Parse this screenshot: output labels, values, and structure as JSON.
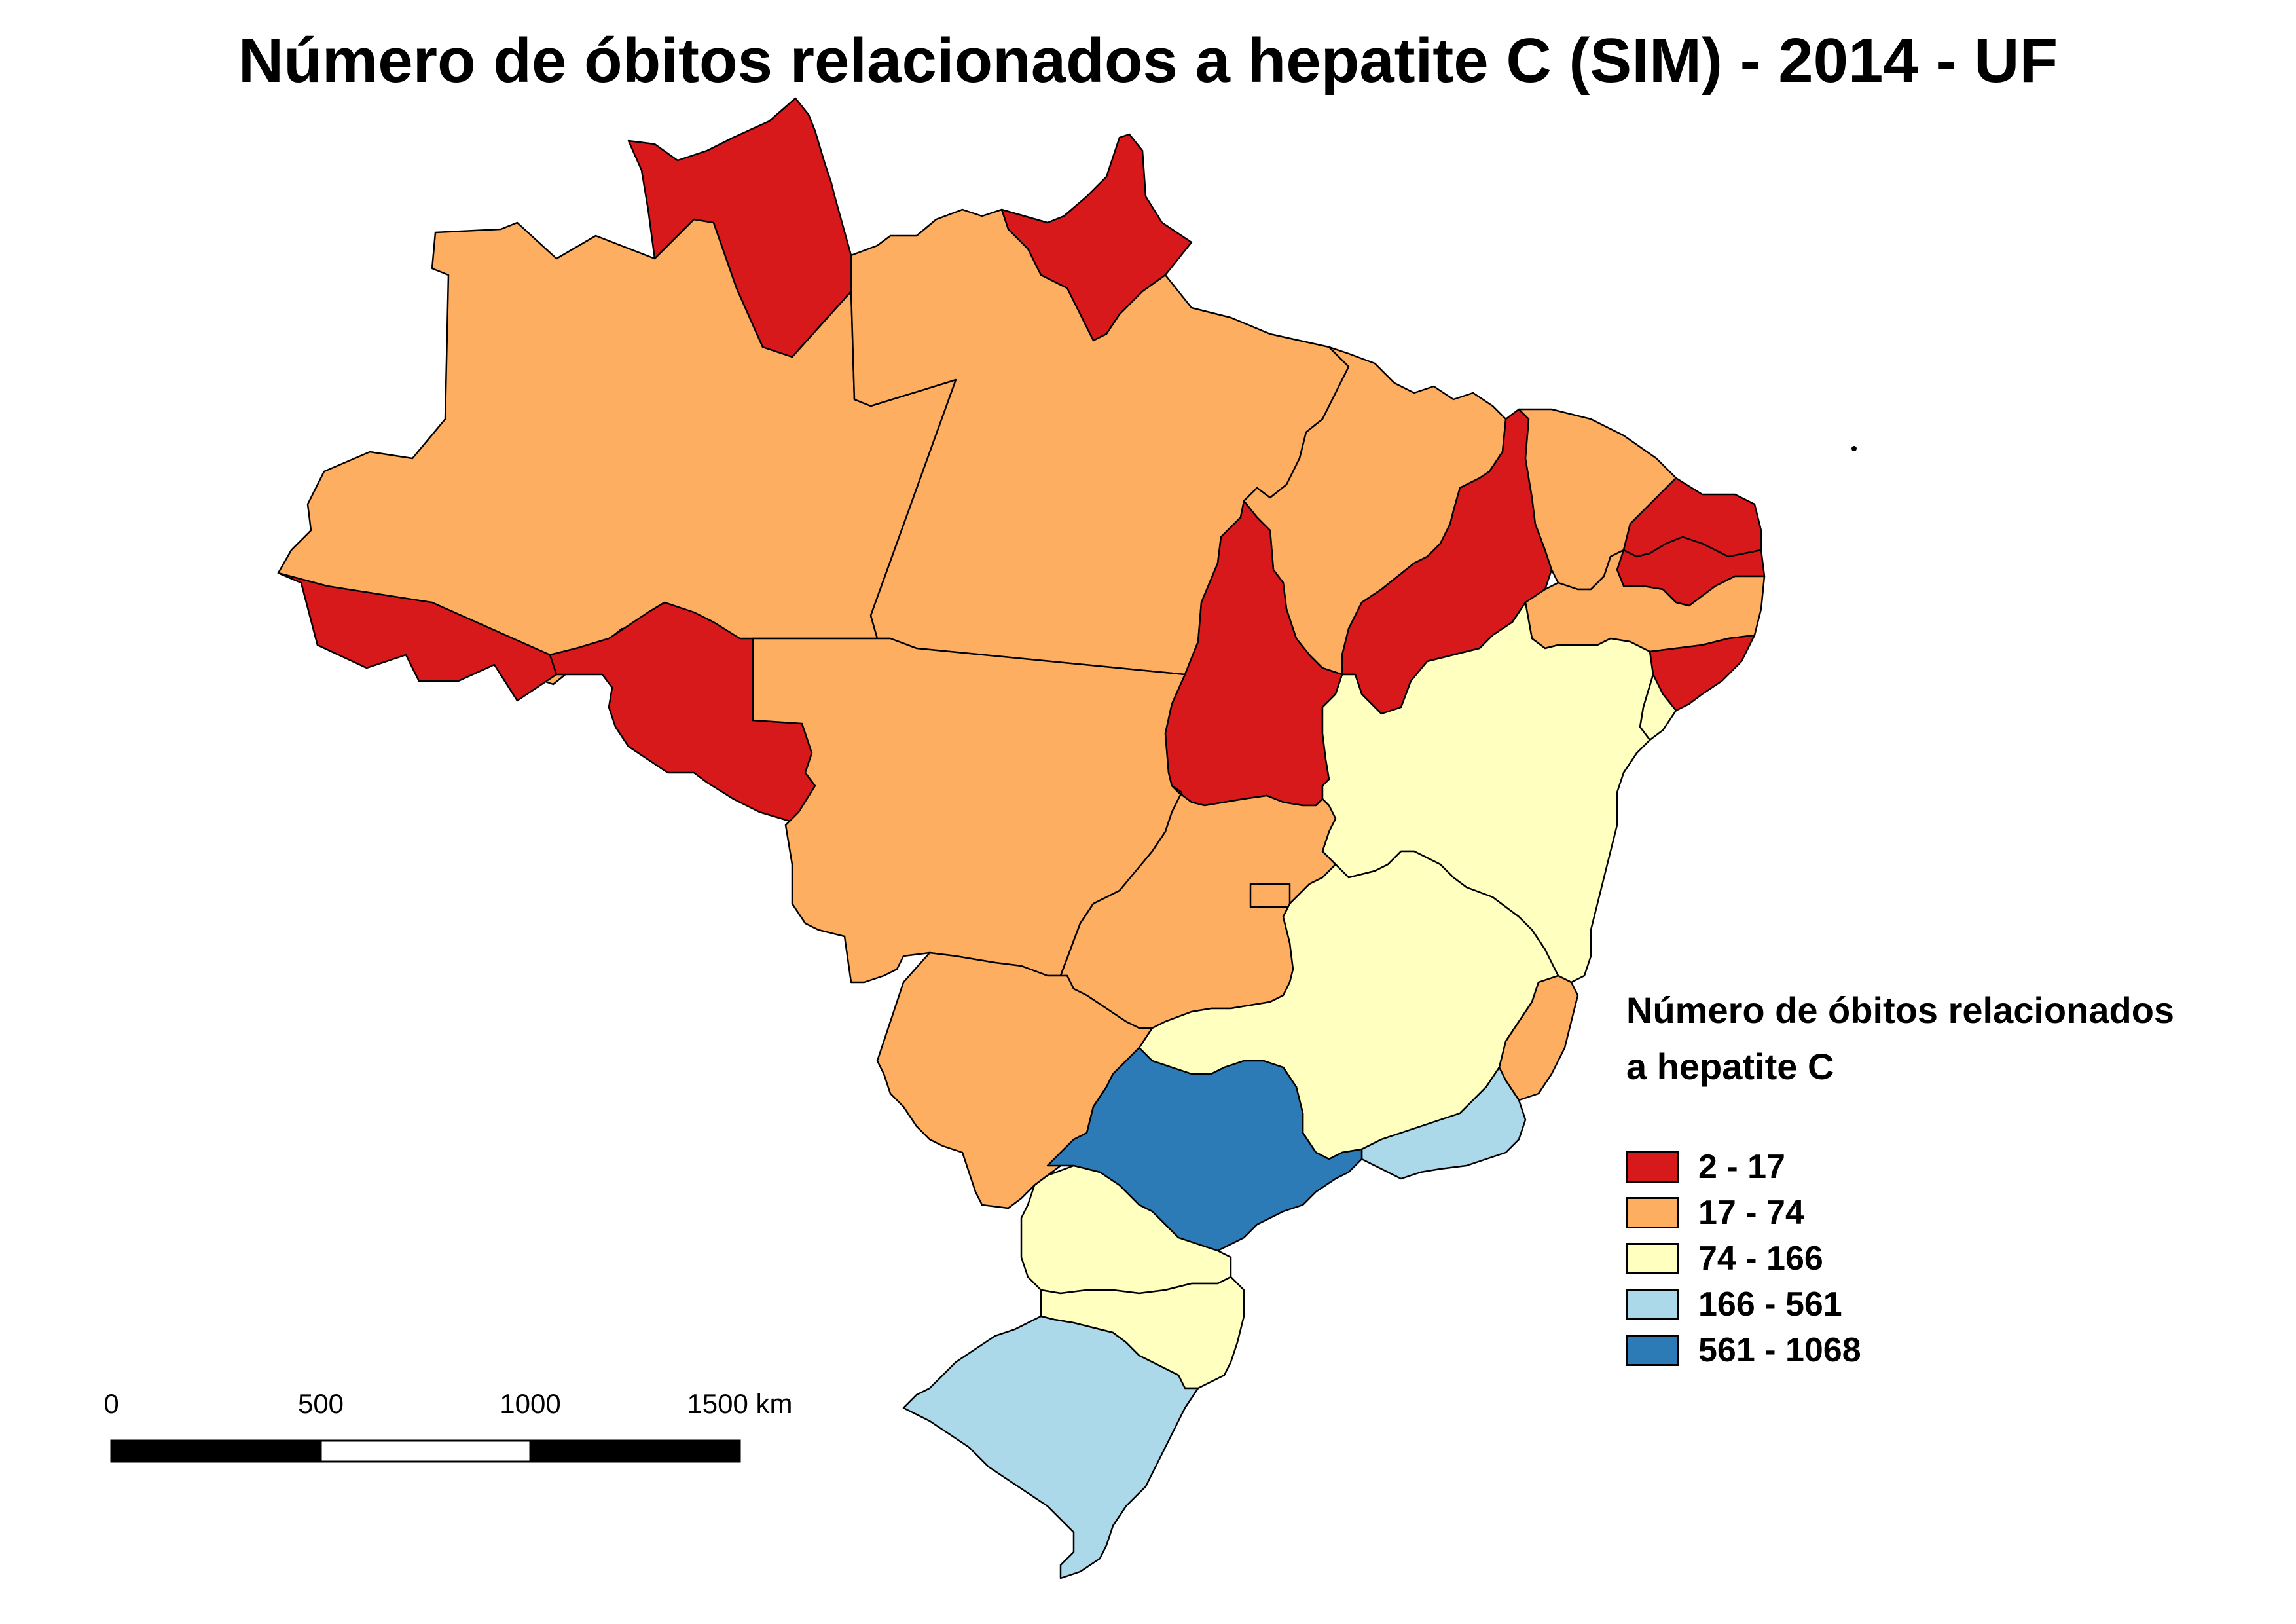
{
  "title": "Número de óbitos relacionados a hepatite C (SIM) - 2014 - UF",
  "legend": {
    "title_line1": "Número de óbitos relacionados",
    "title_line2": "a hepatite C",
    "classes": [
      {
        "label": "2 - 17",
        "color": "#d7191c"
      },
      {
        "label": "17 - 74",
        "color": "#fdae61"
      },
      {
        "label": "74 - 166",
        "color": "#ffffbf"
      },
      {
        "label": "166 - 561",
        "color": "#abd9e9"
      },
      {
        "label": "561 - 1068",
        "color": "#2c7bb6"
      }
    ]
  },
  "scalebar": {
    "labels": [
      "0",
      "500",
      "1000",
      "1500 km"
    ]
  },
  "regions": {
    "RR": 0,
    "AP": 0,
    "AC": 0,
    "RO": 0,
    "TO": 0,
    "PI": 0,
    "RN": 0,
    "PB": 0,
    "AL": 0,
    "AM": 1,
    "PA": 1,
    "MT": 1,
    "MA": 1,
    "CE": 1,
    "PE": 1,
    "GO": 1,
    "MS": 1,
    "ES": 1,
    "DF": 1,
    "BA": 2,
    "MG": 2,
    "PR": 2,
    "SC": 2,
    "SE": 2,
    "RJ": 3,
    "RS": 3,
    "SP": 4
  }
}
